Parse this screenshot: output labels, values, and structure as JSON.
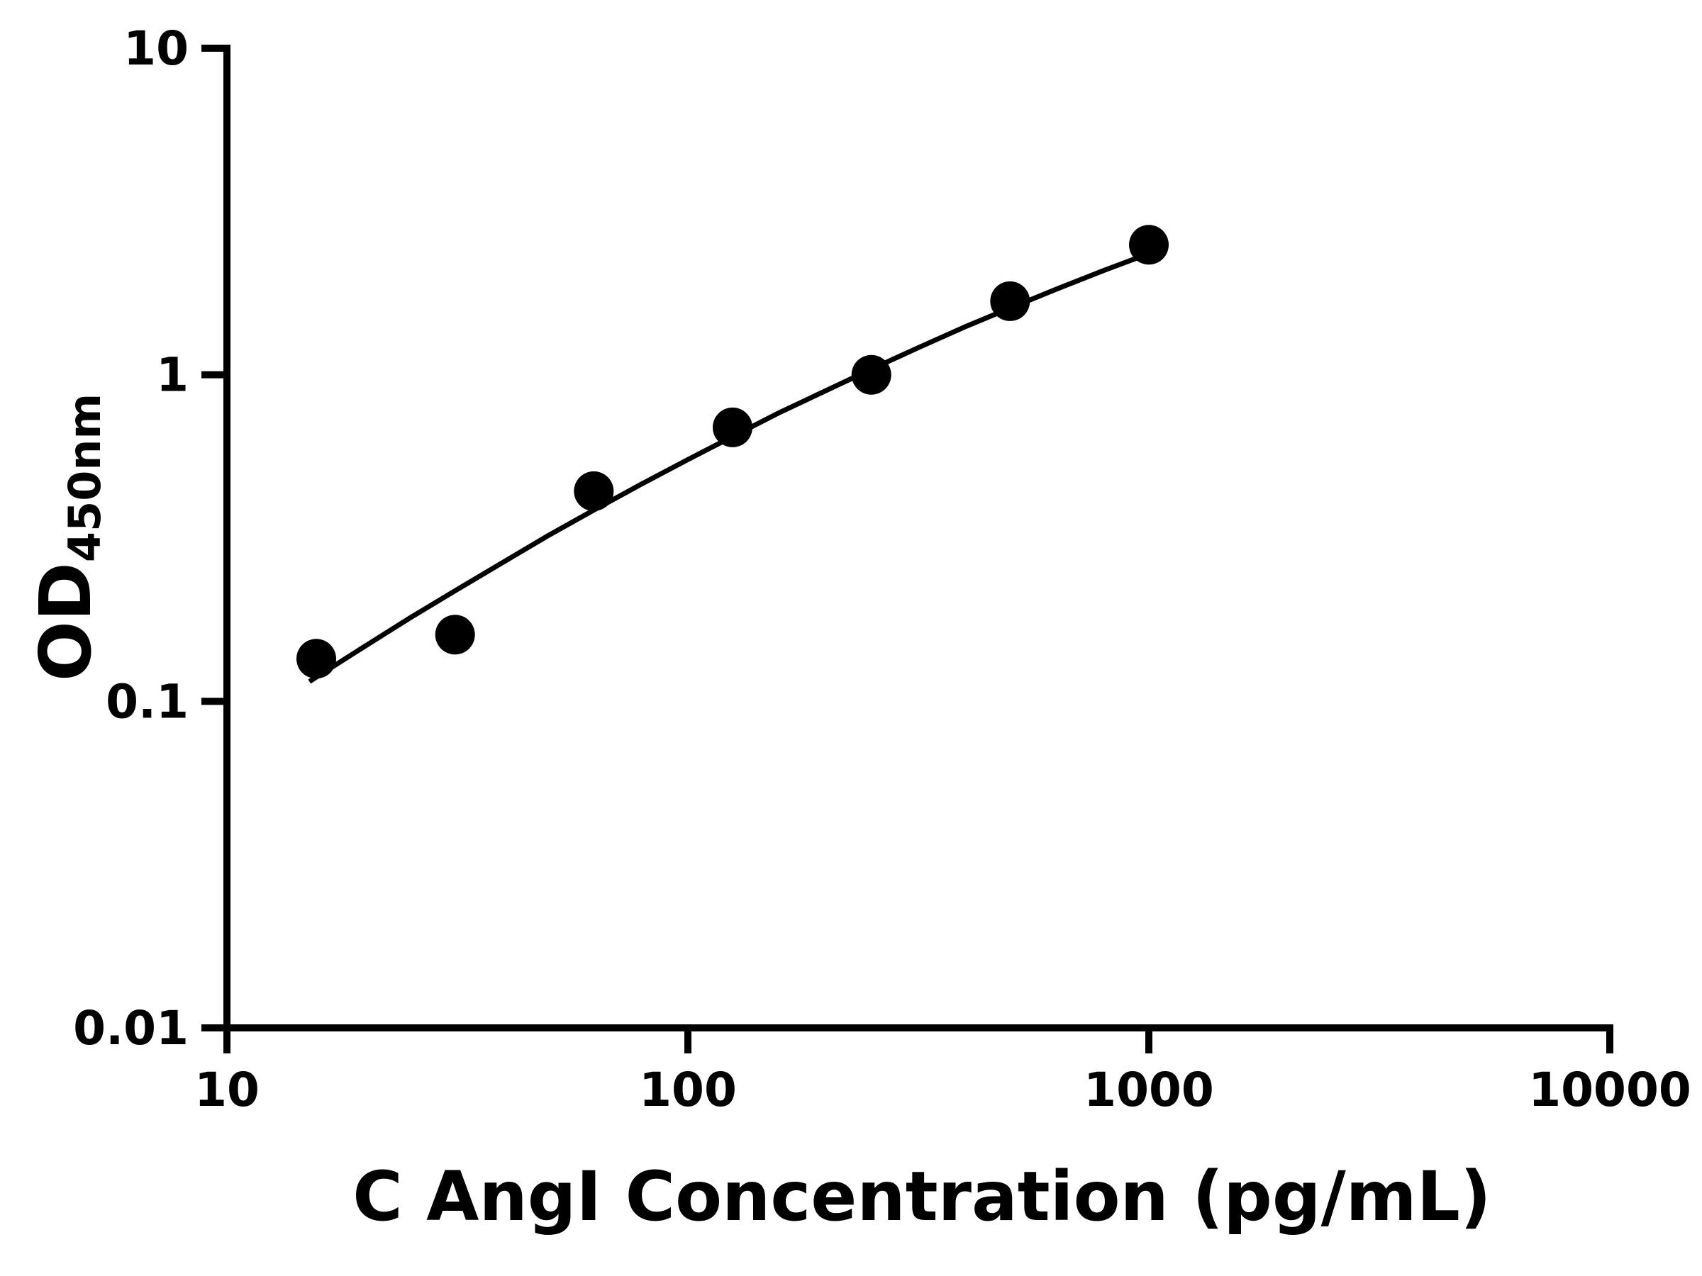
{
  "chart_data": {
    "type": "scatter",
    "title": "",
    "xlabel": "C AngI Concentration (pg/mL)",
    "ylabel_main": "OD",
    "ylabel_sub": "450nm",
    "x_scale": "log",
    "y_scale": "log",
    "xlim": [
      10,
      10000
    ],
    "ylim": [
      0.01,
      10
    ],
    "grid": false,
    "legend": "none",
    "background_color": "#ffffff",
    "axis_color": "#000000",
    "marker_color": "#000000",
    "line_color": "#000000",
    "x_ticks": [
      {
        "value": 10,
        "label": "10"
      },
      {
        "value": 100,
        "label": "100"
      },
      {
        "value": 1000,
        "label": "1000"
      },
      {
        "value": 10000,
        "label": "10000"
      }
    ],
    "y_ticks": [
      {
        "value": 0.01,
        "label": "0.01"
      },
      {
        "value": 0.1,
        "label": "0.1"
      },
      {
        "value": 1,
        "label": "1"
      },
      {
        "value": 10,
        "label": "10"
      }
    ],
    "points": {
      "x": [
        15.625,
        31.25,
        62.5,
        125,
        250,
        500,
        1000
      ],
      "y": [
        0.135,
        0.16,
        0.44,
        0.69,
        1.0,
        1.68,
        2.5
      ]
    },
    "fit_curve": {
      "x": [
        15.1,
        20,
        25.1,
        31.25,
        39.8,
        50,
        62.5,
        79.4,
        100,
        125,
        158,
        200,
        250,
        316,
        398,
        500,
        631,
        794,
        1000
      ],
      "y": [
        0.115,
        0.148,
        0.181,
        0.218,
        0.267,
        0.323,
        0.385,
        0.463,
        0.55,
        0.647,
        0.766,
        0.896,
        1.04,
        1.21,
        1.4,
        1.6,
        1.83,
        2.08,
        2.35
      ]
    }
  }
}
